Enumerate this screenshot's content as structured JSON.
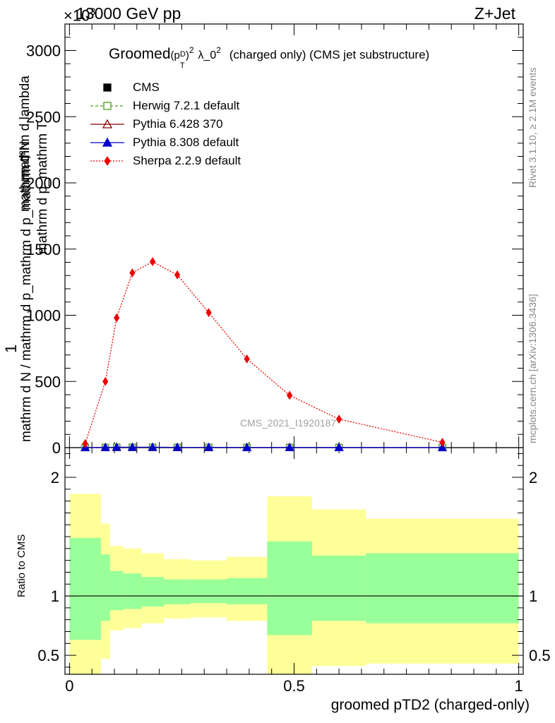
{
  "header": {
    "energy": "13000 GeV pp",
    "process": "Z+Jet",
    "exponent": "×10",
    "exponent_power": "3",
    "analysis_id": "CMS_2021_I1920187"
  },
  "sidebar": {
    "rivet": "Rivet 3.1.10, ≥ 2.1M events",
    "mcplots": "mcplots.cern.ch [arXiv:1306.3436]"
  },
  "chart_data": [
    {
      "type": "line",
      "panel": "main",
      "title_parts": {
        "pre": "Groomed",
        "p": "(p",
        "sub": "T",
        "sup": "D",
        "close": ")",
        "sq": "2",
        "lam": "λ_0",
        "lsq": "2",
        "post": "(charged only) (CMS jet substructure)"
      },
      "ylabel_num": "1",
      "ylabel_den": "mathrm d N / mathrm d p_mathrm d p_mathrm T",
      "ylabel_main": "mathrm d²N",
      "ylabel_mid": "mathrm d p_mathrm T",
      "ylabel_tail": "mathrm d lambda",
      "ylim": [
        0,
        3200
      ],
      "xlim": [
        -0.01,
        1.01
      ],
      "yticks": [
        0,
        500,
        1000,
        1500,
        2000,
        2500,
        3000
      ],
      "ytick_labels": [
        "0",
        "500",
        "1000",
        "1500",
        "2000",
        "2500",
        "3000"
      ],
      "legend_position": "top-left",
      "series": [
        {
          "name": "CMS",
          "color": "#000000",
          "marker": "filled-square",
          "x": [
            0.035,
            0.08,
            0.105,
            0.14,
            0.185,
            0.24,
            0.31,
            0.395,
            0.49,
            0.6,
            0.83
          ],
          "y": [
            0.5,
            1.5,
            2.5,
            2.5,
            2.5,
            2.0,
            2.0,
            1.5,
            1.0,
            1.0,
            0.5
          ]
        },
        {
          "name": "Herwig 7.2.1 default",
          "color": "#4d9e1b",
          "marker": "open-square",
          "line": "dashed",
          "x": [
            0.035,
            0.08,
            0.105,
            0.14,
            0.185,
            0.24,
            0.31,
            0.395,
            0.49,
            0.6,
            0.83
          ],
          "y": [
            0.5,
            1.5,
            2.5,
            2.5,
            2.5,
            2.0,
            2.0,
            1.5,
            1.0,
            1.0,
            0.5
          ]
        },
        {
          "name": "Pythia 6.428 370",
          "color": "#8b0000",
          "marker": "open-triangle",
          "line": "solid",
          "x": [
            0.035,
            0.08,
            0.105,
            0.14,
            0.185,
            0.24,
            0.31,
            0.395,
            0.49,
            0.6,
            0.83
          ],
          "y": [
            0.5,
            1.5,
            2.5,
            2.5,
            2.5,
            2.0,
            2.0,
            1.5,
            1.0,
            1.0,
            0.5
          ]
        },
        {
          "name": "Pythia 8.308 default",
          "color": "#0000cc",
          "marker": "filled-triangle",
          "line": "solid",
          "x": [
            0.035,
            0.08,
            0.105,
            0.14,
            0.185,
            0.24,
            0.31,
            0.395,
            0.49,
            0.6,
            0.83
          ],
          "y": [
            0.5,
            1.5,
            2.5,
            2.5,
            2.5,
            2.0,
            2.0,
            1.5,
            1.0,
            1.0,
            0.5
          ]
        },
        {
          "name": "Sherpa 2.2.9 default",
          "color": "#ee0000",
          "marker": "filled-diamond",
          "line": "dotted",
          "x": [
            0.035,
            0.08,
            0.105,
            0.14,
            0.185,
            0.24,
            0.31,
            0.395,
            0.49,
            0.6,
            0.83
          ],
          "y": [
            30,
            500,
            980,
            1320,
            1405,
            1305,
            1020,
            670,
            395,
            215,
            40
          ]
        }
      ]
    },
    {
      "type": "area",
      "panel": "ratio",
      "ylabel": "Ratio to CMS",
      "ylim": [
        0.34,
        2.25
      ],
      "yticks": [
        0.5,
        1,
        2
      ],
      "ytick_labels": [
        "0.5",
        "1",
        "2"
      ],
      "xlim": [
        -0.01,
        1.01
      ],
      "xticks": [
        0,
        0.5,
        1
      ],
      "xtick_labels": [
        "0",
        "0.5",
        "1"
      ],
      "xlabel": "groomed pTD2 (charged-only)",
      "reference_line": 1,
      "bins": [
        {
          "x0": 0.0,
          "x1": 0.07,
          "yellow": [
            0.34,
            1.86
          ],
          "green": [
            0.63,
            1.49
          ]
        },
        {
          "x0": 0.07,
          "x1": 0.09,
          "yellow": [
            0.47,
            1.61
          ],
          "green": [
            0.79,
            1.35
          ]
        },
        {
          "x0": 0.09,
          "x1": 0.12,
          "yellow": [
            0.71,
            1.42
          ],
          "green": [
            0.88,
            1.21
          ]
        },
        {
          "x0": 0.12,
          "x1": 0.16,
          "yellow": [
            0.73,
            1.4
          ],
          "green": [
            0.89,
            1.19
          ]
        },
        {
          "x0": 0.16,
          "x1": 0.21,
          "yellow": [
            0.77,
            1.36
          ],
          "green": [
            0.91,
            1.16
          ]
        },
        {
          "x0": 0.21,
          "x1": 0.27,
          "yellow": [
            0.81,
            1.31
          ],
          "green": [
            0.93,
            1.14
          ]
        },
        {
          "x0": 0.27,
          "x1": 0.35,
          "yellow": [
            0.82,
            1.3
          ],
          "green": [
            0.94,
            1.14
          ]
        },
        {
          "x0": 0.35,
          "x1": 0.44,
          "yellow": [
            0.79,
            1.33
          ],
          "green": [
            0.93,
            1.15
          ]
        },
        {
          "x0": 0.44,
          "x1": 0.54,
          "yellow": [
            0.34,
            1.84
          ],
          "green": [
            0.67,
            1.46
          ]
        },
        {
          "x0": 0.54,
          "x1": 0.66,
          "yellow": [
            0.41,
            1.73
          ],
          "green": [
            0.79,
            1.34
          ]
        },
        {
          "x0": 0.66,
          "x1": 1.0,
          "yellow": [
            0.43,
            1.65
          ],
          "green": [
            0.77,
            1.36
          ]
        }
      ]
    }
  ]
}
